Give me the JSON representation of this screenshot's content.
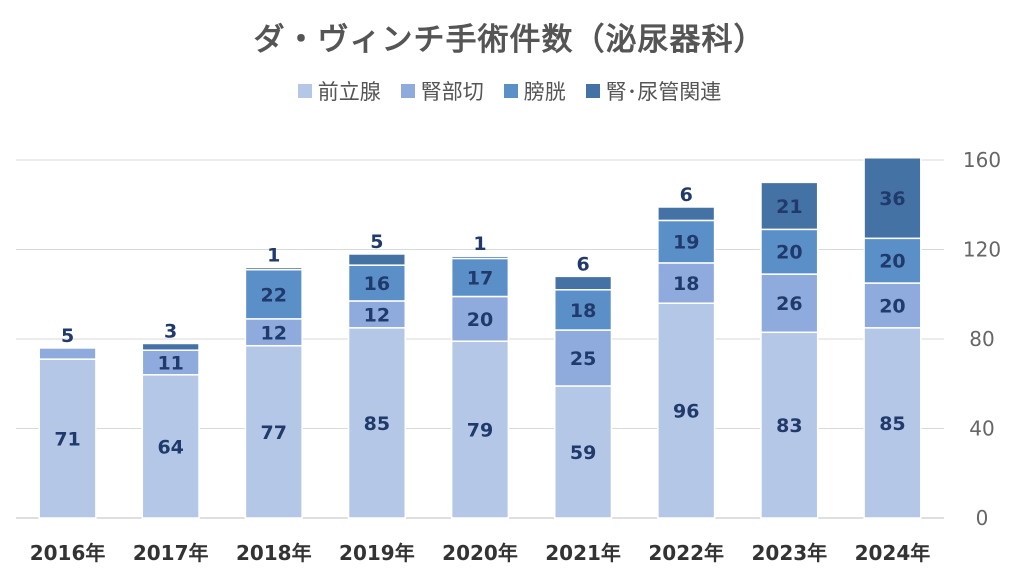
{
  "chart_data": {
    "type": "bar",
    "stacked": true,
    "title": "ダ・ヴィンチ手術件数（泌尿器科）",
    "categories": [
      "2016年",
      "2017年",
      "2018年",
      "2019年",
      "2020年",
      "2021年",
      "2022年",
      "2023年",
      "2024年"
    ],
    "series": [
      {
        "name": "前立腺",
        "color": "#b4c7e7",
        "values": [
          71,
          64,
          77,
          85,
          79,
          59,
          96,
          83,
          85
        ]
      },
      {
        "name": "腎部切",
        "color": "#8faadc",
        "values": [
          5,
          11,
          12,
          12,
          20,
          25,
          18,
          26,
          20
        ]
      },
      {
        "name": "膀胱",
        "color": "#5b8fc8",
        "values": [
          0,
          0,
          22,
          16,
          17,
          18,
          19,
          20,
          20
        ]
      },
      {
        "name": "腎･尿管関連",
        "color": "#4472a4",
        "values": [
          0,
          3,
          1,
          5,
          1,
          6,
          6,
          21,
          36
        ]
      }
    ],
    "segment_labels": [
      [
        "71",
        "5",
        null,
        null
      ],
      [
        "64",
        "11",
        null,
        "3"
      ],
      [
        "77",
        "12",
        "22",
        "1"
      ],
      [
        "85",
        "12",
        "16",
        "5"
      ],
      [
        "79",
        "20",
        "17",
        "1"
      ],
      [
        "59",
        "25",
        "18",
        "6"
      ],
      [
        "96",
        "18",
        "19",
        "6"
      ],
      [
        "83",
        "26",
        "20",
        "21"
      ],
      [
        "85",
        "20",
        "20",
        "36"
      ]
    ],
    "ylim": [
      0,
      160
    ],
    "yticks": [
      "0",
      "40",
      "80",
      "120",
      "160"
    ],
    "yaxis_position": "right",
    "grid": true,
    "legend_position": "top"
  }
}
